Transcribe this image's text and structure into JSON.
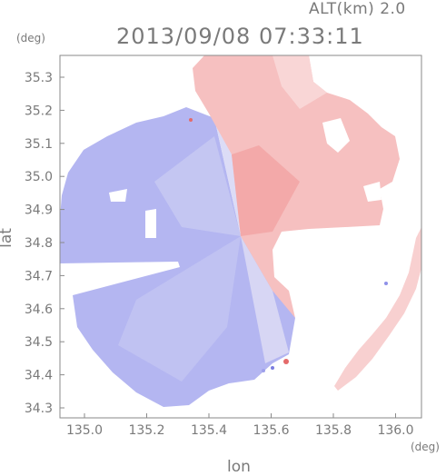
{
  "header": {
    "altitude": "ALT(km) 2.0",
    "timestamp": "2013/09/08 07:33:11"
  },
  "axes": {
    "x_unit": "(deg)",
    "y_unit": "(deg)",
    "x_label": "lon",
    "y_label": "lat",
    "x_ticks": [
      "135.0",
      "135.2",
      "135.4",
      "135.6",
      "135.8",
      "136.0"
    ],
    "y_ticks": [
      "35.3",
      "35.2",
      "35.1",
      "35.0",
      "34.9",
      "34.8",
      "34.7",
      "34.6",
      "34.5",
      "34.4",
      "34.3"
    ]
  },
  "map": {
    "radar_center_lon": 135.52,
    "radar_center_lat": 34.82,
    "approach_color": "#a8acf2",
    "recede_color": "#f6b4b4",
    "neutral_color": "#f3f0f8"
  }
}
